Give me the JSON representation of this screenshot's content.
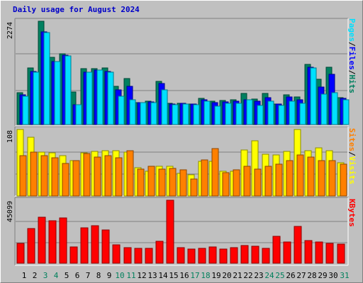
{
  "chart_data": [
    {
      "panel": "top",
      "type": "bar",
      "categories": [
        "1",
        "2",
        "3",
        "4",
        "5",
        "6",
        "7",
        "8",
        "9",
        "10",
        "11",
        "12",
        "13",
        "14",
        "15",
        "16",
        "17",
        "18",
        "19",
        "20",
        "21",
        "22",
        "23",
        "24",
        "25",
        "26",
        "27",
        "28",
        "29",
        "30",
        "31"
      ],
      "max_label": "2274",
      "ylim": [
        0,
        2274
      ],
      "series": [
        {
          "name": "Hits",
          "color": "#008060",
          "values": [
            706,
            1253,
            2274,
            1483,
            1560,
            718,
            1238,
            1238,
            1253,
            835,
            1014,
            490,
            515,
            955,
            460,
            475,
            450,
            570,
            510,
            530,
            550,
            690,
            560,
            690,
            455,
            650,
            605,
            1330,
            1000,
            1255,
            590
          ]
        },
        {
          "name": "Files",
          "color": "#0000ff",
          "values": [
            650,
            1175,
            2045,
            1390,
            1530,
            435,
            1160,
            1200,
            1175,
            770,
            840,
            490,
            495,
            905,
            445,
            460,
            445,
            550,
            490,
            500,
            510,
            540,
            510,
            590,
            455,
            600,
            540,
            1260,
            830,
            1110,
            570
          ]
        },
        {
          "name": "Pages",
          "color": "#00e0ff",
          "values": [
            620,
            1160,
            2020,
            1385,
            1510,
            435,
            1150,
            1195,
            1160,
            630,
            545,
            490,
            490,
            760,
            440,
            455,
            440,
            510,
            410,
            475,
            475,
            540,
            420,
            510,
            425,
            510,
            475,
            1240,
            670,
            700,
            540
          ]
        }
      ],
      "legend": [
        "Pages",
        "Files",
        "Hits"
      ]
    },
    {
      "panel": "middle",
      "type": "bar",
      "categories": [
        "1",
        "2",
        "3",
        "4",
        "5",
        "6",
        "7",
        "8",
        "9",
        "10",
        "11",
        "12",
        "13",
        "14",
        "15",
        "16",
        "17",
        "18",
        "19",
        "20",
        "21",
        "22",
        "23",
        "24",
        "25",
        "26",
        "27",
        "28",
        "29",
        "30",
        "31"
      ],
      "max_label": "108",
      "ylim": [
        0,
        108
      ],
      "series": [
        {
          "name": "Visits",
          "color": "#ffff00",
          "values": [
            108,
            95,
            71,
            70,
            65,
            58,
            70,
            72,
            74,
            73,
            71,
            46,
            40,
            48,
            48,
            37,
            35,
            56,
            56,
            40,
            40,
            75,
            90,
            68,
            67,
            72,
            108,
            73,
            78,
            73,
            54
          ]
        },
        {
          "name": "Sites",
          "color": "#ff8000",
          "values": [
            66,
            71,
            66,
            62,
            53,
            58,
            69,
            63,
            66,
            62,
            73,
            44,
            48,
            44,
            45,
            43,
            28,
            59,
            77,
            38,
            43,
            48,
            44,
            48,
            52,
            58,
            67,
            63,
            57,
            57,
            52
          ]
        }
      ],
      "legend": [
        "Sites",
        "Visits"
      ]
    },
    {
      "panel": "bottom",
      "type": "bar",
      "categories": [
        "1",
        "2",
        "3",
        "4",
        "5",
        "6",
        "7",
        "8",
        "9",
        "10",
        "11",
        "12",
        "13",
        "14",
        "15",
        "16",
        "17",
        "18",
        "19",
        "20",
        "21",
        "22",
        "23",
        "24",
        "25",
        "26",
        "27",
        "28",
        "29",
        "30",
        "31"
      ],
      "max_label": "45099",
      "ylim": [
        0,
        45099
      ],
      "series": [
        {
          "name": "KBytes",
          "color": "#ff0000",
          "values": [
            14000,
            25000,
            33000,
            30500,
            32500,
            11500,
            25500,
            27000,
            24000,
            13000,
            11000,
            10500,
            10500,
            15500,
            45099,
            11000,
            10000,
            10500,
            11500,
            10000,
            11000,
            12500,
            12000,
            10500,
            19500,
            15000,
            26500,
            16000,
            15000,
            14000,
            13500
          ]
        }
      ],
      "legend": [
        "KBytes"
      ]
    }
  ],
  "header": {
    "title": "Daily usage for August 2024"
  },
  "weekend_days": [
    3,
    4,
    10,
    11,
    17,
    18,
    24,
    25,
    31
  ],
  "colors": {
    "panel_bg": "#c0c0c0",
    "grid": "#808080",
    "weekday_label": "#000000",
    "weekend_label": "#00805c"
  }
}
